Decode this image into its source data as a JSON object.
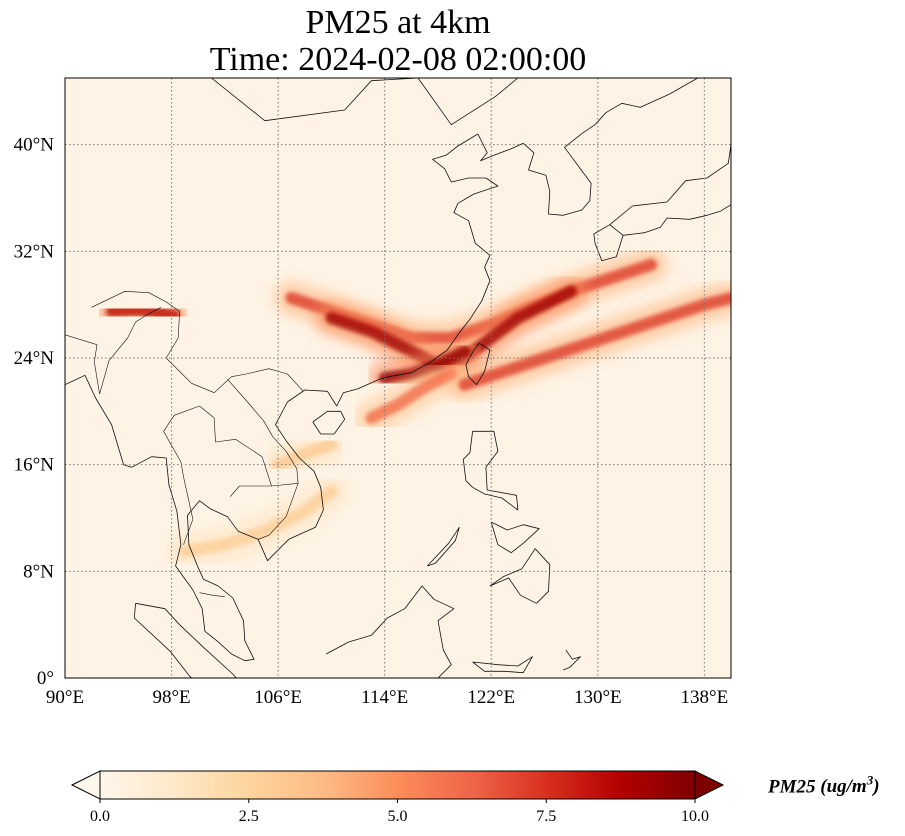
{
  "title": {
    "line1": "PM25 at 4km",
    "line2": "Time: 2024-02-08 02:00:00"
  },
  "map": {
    "projection": "PlateCarree",
    "extent": {
      "lon_min": 90,
      "lon_max": 140,
      "lat_min": 0,
      "lat_max": 45
    },
    "lon_ticks": [
      {
        "value": 90,
        "label": "90°E"
      },
      {
        "value": 98,
        "label": "98°E"
      },
      {
        "value": 106,
        "label": "106°E"
      },
      {
        "value": 114,
        "label": "114°E"
      },
      {
        "value": 122,
        "label": "122°E"
      },
      {
        "value": 130,
        "label": "130°E"
      },
      {
        "value": 138,
        "label": "138°E"
      }
    ],
    "lat_ticks": [
      {
        "value": 0,
        "label": "0°"
      },
      {
        "value": 8,
        "label": "8°N"
      },
      {
        "value": 16,
        "label": "16°N"
      },
      {
        "value": 24,
        "label": "24°N"
      },
      {
        "value": 32,
        "label": "32°N"
      },
      {
        "value": 40,
        "label": "40°N"
      }
    ],
    "gridlines": "dotted",
    "colormap": "OrRd",
    "colors": {
      "background": "#fef3e4",
      "coast": "#111111",
      "grid": "#777777"
    },
    "plumes": [
      {
        "name": "main-band-upper",
        "intensity": 0.72,
        "path": [
          [
            107,
            28.5
          ],
          [
            110,
            27.5
          ],
          [
            113,
            26.5
          ],
          [
            116,
            25.5
          ],
          [
            119,
            25.5
          ],
          [
            122,
            26.5
          ],
          [
            125,
            27.8
          ],
          [
            128,
            29
          ],
          [
            131,
            30
          ],
          [
            134,
            31
          ]
        ]
      },
      {
        "name": "main-band-core",
        "intensity": 0.92,
        "path": [
          [
            110,
            27
          ],
          [
            113,
            26
          ],
          [
            116,
            24.5
          ],
          [
            118,
            23.5
          ],
          [
            120,
            24
          ],
          [
            122,
            25.5
          ],
          [
            124,
            27
          ],
          [
            126,
            28
          ],
          [
            128,
            29
          ]
        ]
      },
      {
        "name": "coast-plume",
        "intensity": 0.95,
        "path": [
          [
            114,
            22.5
          ],
          [
            116,
            22.8
          ],
          [
            118,
            23.5
          ],
          [
            120,
            24.5
          ]
        ]
      },
      {
        "name": "south-branch",
        "intensity": 0.6,
        "path": [
          [
            113,
            19.5
          ],
          [
            115,
            20.5
          ],
          [
            117,
            21.8
          ],
          [
            119,
            22.8
          ]
        ]
      },
      {
        "name": "east-band",
        "intensity": 0.72,
        "path": [
          [
            120,
            22
          ],
          [
            123,
            23
          ],
          [
            126,
            24
          ],
          [
            129,
            25
          ],
          [
            132,
            26
          ],
          [
            135,
            27
          ],
          [
            138,
            28
          ],
          [
            140,
            28.5
          ]
        ]
      },
      {
        "name": "himalaya-patch",
        "intensity": 0.85,
        "path": [
          [
            93.5,
            27.5
          ],
          [
            95.5,
            27.6
          ],
          [
            97,
            27.4
          ],
          [
            98.2,
            27.2
          ]
        ]
      },
      {
        "name": "southwest-haze",
        "intensity": 0.28,
        "path": [
          [
            99,
            9.5
          ],
          [
            102,
            10
          ],
          [
            105,
            11
          ],
          [
            108,
            12.5
          ],
          [
            110,
            14
          ]
        ]
      },
      {
        "name": "indochina-haze",
        "intensity": 0.3,
        "path": [
          [
            106,
            16
          ],
          [
            108.5,
            17
          ],
          [
            110,
            17.5
          ]
        ]
      }
    ]
  },
  "colorbar": {
    "label": "PM25",
    "unit_prefix": "(ug/m",
    "unit_exp": "3",
    "unit_suffix": ")",
    "min": 0,
    "max": 10,
    "extend": "both",
    "ticks": [
      {
        "value": 0,
        "label": "0.0"
      },
      {
        "value": 2.5,
        "label": "2.5"
      },
      {
        "value": 5,
        "label": "5.0"
      },
      {
        "value": 7.5,
        "label": "7.5"
      },
      {
        "value": 10,
        "label": "10.0"
      }
    ]
  }
}
